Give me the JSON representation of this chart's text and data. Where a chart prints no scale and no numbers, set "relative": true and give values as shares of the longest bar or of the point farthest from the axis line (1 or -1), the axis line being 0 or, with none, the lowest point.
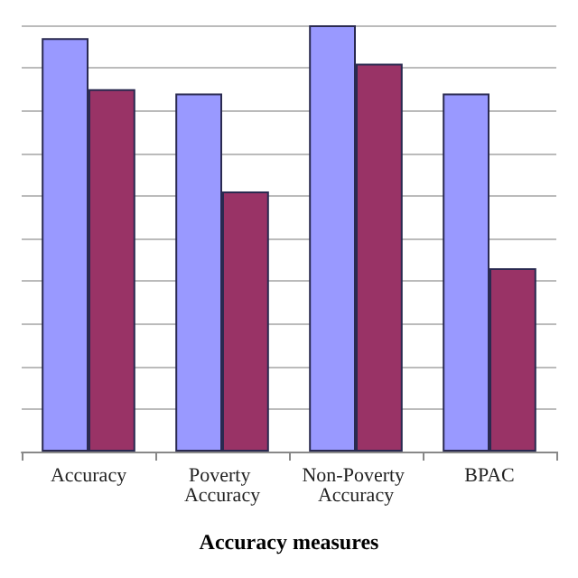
{
  "chart_data": {
    "type": "bar",
    "relative": true,
    "xlabel": "Accuracy measures",
    "categories": [
      "Accuracy",
      "Poverty Accuracy",
      "Non-Poverty Accuracy",
      "BPAC"
    ],
    "series": [
      {
        "color": "#9999ff",
        "values": [
          0.97,
          0.84,
          1,
          0.84
        ]
      },
      {
        "color": "#993366",
        "values": [
          0.85,
          0.61,
          0.91,
          0.43
        ]
      }
    ],
    "grid": "y"
  }
}
